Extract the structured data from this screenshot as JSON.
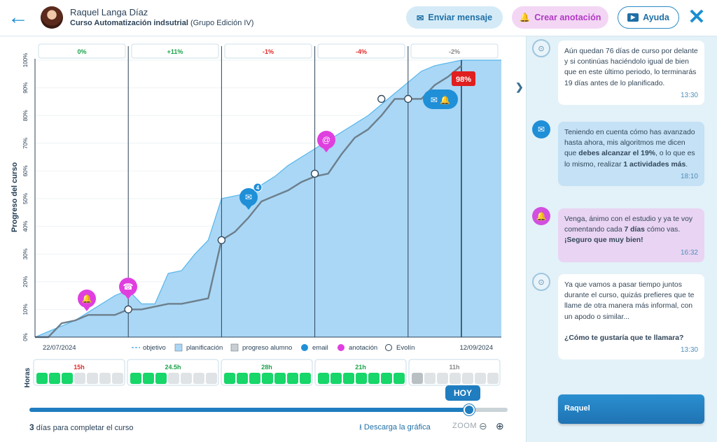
{
  "header": {
    "user_name": "Raquel Langa Díaz",
    "course_name": "Curso Automatización indsutrial",
    "course_group": "(Grupo Edición IV)",
    "send_message": "Enviar mensaje",
    "create_note": "Crear anotación",
    "help": "Ayuda"
  },
  "chart_data": {
    "type": "area",
    "ylabel": "Progreso del curso",
    "yticks": [
      "0%",
      "10%",
      "20%",
      "30%",
      "40%",
      "50%",
      "60%",
      "70%",
      "80%",
      "90%",
      "100%"
    ],
    "ylim": [
      0,
      100
    ],
    "x_start": "22/07/2024",
    "x_end": "12/09/2024",
    "period_deltas": [
      {
        "label": "0%",
        "color": "#1aa34a"
      },
      {
        "label": "+11%",
        "color": "#1aa34a"
      },
      {
        "label": "-1%",
        "color": "#e02b2b"
      },
      {
        "label": "-4%",
        "color": "#e02b2b"
      },
      {
        "label": "-2%",
        "color": "#8a8a8a"
      }
    ],
    "series": [
      {
        "name": "planificación",
        "values": [
          [
            0,
            0
          ],
          [
            5,
            2
          ],
          [
            10,
            4
          ],
          [
            15,
            6
          ],
          [
            20,
            9
          ],
          [
            25,
            12
          ],
          [
            30,
            15
          ],
          [
            35,
            17
          ],
          [
            40,
            12
          ],
          [
            45,
            12
          ],
          [
            50,
            23
          ],
          [
            55,
            24
          ],
          [
            60,
            30
          ],
          [
            65,
            35
          ],
          [
            70,
            50
          ],
          [
            75,
            51
          ],
          [
            80,
            52
          ],
          [
            85,
            55
          ],
          [
            90,
            58
          ],
          [
            95,
            62
          ],
          [
            100,
            65
          ],
          [
            105,
            68
          ],
          [
            110,
            71
          ],
          [
            115,
            74
          ],
          [
            120,
            77
          ],
          [
            125,
            80
          ],
          [
            130,
            84
          ],
          [
            135,
            88
          ],
          [
            140,
            92
          ],
          [
            145,
            96
          ],
          [
            150,
            98
          ],
          [
            155,
            99
          ],
          [
            160,
            100
          ],
          [
            175,
            100
          ]
        ]
      },
      {
        "name": "progreso alumno",
        "values": [
          [
            0,
            0
          ],
          [
            5,
            0
          ],
          [
            10,
            5
          ],
          [
            15,
            6
          ],
          [
            20,
            8
          ],
          [
            30,
            8
          ],
          [
            35,
            10
          ],
          [
            40,
            10
          ],
          [
            50,
            12
          ],
          [
            55,
            12
          ],
          [
            60,
            13
          ],
          [
            65,
            14
          ],
          [
            70,
            35
          ],
          [
            75,
            38
          ],
          [
            80,
            43
          ],
          [
            85,
            49
          ],
          [
            90,
            51
          ],
          [
            95,
            53
          ],
          [
            100,
            56
          ],
          [
            105,
            58
          ],
          [
            110,
            59
          ],
          [
            115,
            66
          ],
          [
            120,
            72
          ],
          [
            125,
            75
          ],
          [
            130,
            80
          ],
          [
            135,
            86
          ],
          [
            140,
            86
          ],
          [
            145,
            86
          ],
          [
            150,
            91
          ],
          [
            155,
            94
          ],
          [
            160,
            98
          ]
        ]
      }
    ],
    "checkpoints": [
      [
        35,
        10
      ],
      [
        70,
        35
      ],
      [
        105,
        59
      ],
      [
        130,
        86
      ],
      [
        140,
        86
      ]
    ],
    "current_value": "98%",
    "legend": [
      "objetivo",
      "planificación",
      "progreso alumno",
      "email",
      "anotación",
      "Evolín"
    ],
    "hours_label": "Horas",
    "hours": [
      {
        "label": "15h",
        "color": "#e02b2b",
        "filled": 3
      },
      {
        "label": "24.5h",
        "color": "#1aa34a",
        "filled": 3
      },
      {
        "label": "28h",
        "color": "#1aa34a",
        "filled": 7
      },
      {
        "label": "21h",
        "color": "#1aa34a",
        "filled": 7
      },
      {
        "label": "11h",
        "color": "#8a8a8a",
        "filled": 1
      }
    ]
  },
  "controls": {
    "today": "HOY",
    "days_left": "3",
    "days_text": "días para completar el curso",
    "download": "Descarga la gráfica",
    "zoom": "ZOOM",
    "progress_fraction": 0.92
  },
  "chat": [
    {
      "type": "bot",
      "text": "Aún quedan 76 días de curso por delante y si continúas haciéndolo igual de bien que en este último periodo, lo terminarás 19 días antes de lo planificado.",
      "time": "13:30"
    },
    {
      "type": "mail",
      "parts": [
        "Teniendo en cuenta cómo has avanzado hasta ahora, mis algoritmos me dicen que ",
        "debes alcanzar el 19%",
        ", o lo que es lo mismo, realizar ",
        "1 actividades más",
        "."
      ],
      "time": "18:10"
    },
    {
      "type": "note",
      "parts": [
        "Venga, ánimo con el estudio y ya te voy comentando cada ",
        "7 días",
        " cómo vas. ",
        "¡Seguro que muy bien!"
      ],
      "time": "16:32"
    },
    {
      "type": "bot",
      "text": "Ya que vamos a pasar tiempo juntos durante el curso, quizás prefieres que te llame de otra manera más informal, con un apodo o similar...",
      "question": "¿Cómo te gustaría que te llamara?",
      "time": "13:30"
    }
  ],
  "input": {
    "value": "Raquel"
  }
}
